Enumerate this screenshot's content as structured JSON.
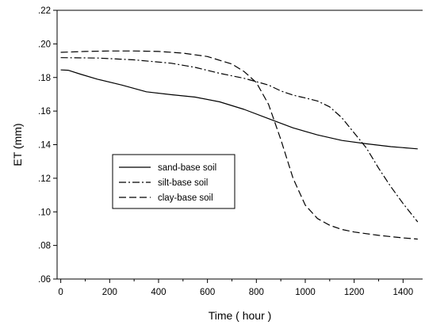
{
  "chart_data": {
    "type": "line",
    "title": "",
    "xlabel": "Time ( hour )",
    "ylabel": "ET (mm)",
    "xlim": [
      -15,
      1480
    ],
    "ylim": [
      0.06,
      0.22
    ],
    "x_ticks": [
      0,
      200,
      400,
      600,
      800,
      1000,
      1200,
      1400
    ],
    "x_tick_labels": [
      "0",
      "200",
      "400",
      "600",
      "800",
      "1000",
      "1200",
      "1400"
    ],
    "y_ticks": [
      0.06,
      0.08,
      0.1,
      0.12,
      0.14,
      0.16,
      0.18,
      0.2,
      0.22
    ],
    "y_tick_labels": [
      ".06",
      ".08",
      ".10",
      ".12",
      ".14",
      ".16",
      ".18",
      ".20",
      ".22"
    ],
    "grid": false,
    "legend_position": "center-left",
    "series": [
      {
        "name": "sand-base soil",
        "style": "solid",
        "x": [
          0,
          30,
          80,
          150,
          250,
          350,
          450,
          550,
          650,
          750,
          850,
          950,
          1050,
          1150,
          1250,
          1350,
          1460
        ],
        "y": [
          0.1845,
          0.1843,
          0.182,
          0.179,
          0.1755,
          0.1715,
          0.1698,
          0.1683,
          0.1655,
          0.161,
          0.1555,
          0.15,
          0.1458,
          0.1425,
          0.1405,
          0.1388,
          0.1375
        ]
      },
      {
        "name": "silt-base soil",
        "style": "dashdot",
        "x": [
          0,
          150,
          300,
          450,
          550,
          650,
          750,
          850,
          900,
          950,
          1000,
          1050,
          1100,
          1150,
          1200,
          1250,
          1300,
          1350,
          1400,
          1460
        ],
        "y": [
          0.1918,
          0.1916,
          0.1905,
          0.1885,
          0.186,
          0.1825,
          0.1795,
          0.1755,
          0.172,
          0.1695,
          0.1678,
          0.166,
          0.1625,
          0.156,
          0.147,
          0.138,
          0.126,
          0.115,
          0.105,
          0.094
        ]
      },
      {
        "name": "clay-base soil",
        "style": "dashed",
        "x": [
          0,
          100,
          200,
          300,
          400,
          500,
          600,
          700,
          750,
          800,
          850,
          900,
          950,
          1000,
          1050,
          1100,
          1150,
          1200,
          1300,
          1400,
          1460
        ],
        "y": [
          0.195,
          0.1955,
          0.1958,
          0.1958,
          0.1955,
          0.1945,
          0.1925,
          0.188,
          0.1835,
          0.177,
          0.164,
          0.143,
          0.12,
          0.104,
          0.096,
          0.092,
          0.0895,
          0.088,
          0.086,
          0.0845,
          0.0838
        ]
      }
    ]
  }
}
